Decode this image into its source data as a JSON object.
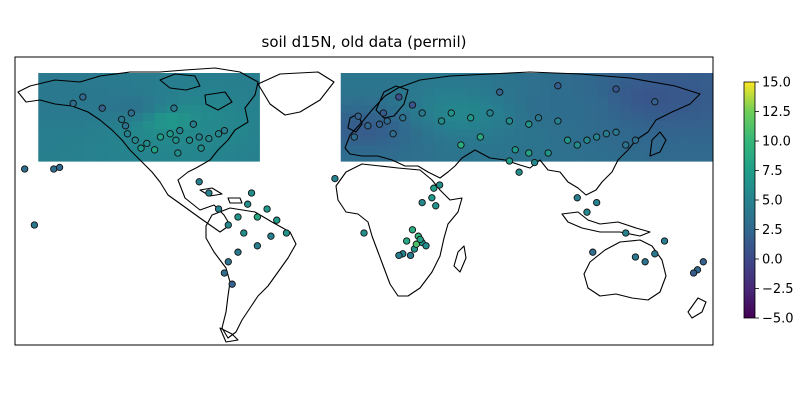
{
  "title": "soil d15N, old data (permil)",
  "colorbar": {
    "colormap": "viridis",
    "vmin": -5.0,
    "vmax": 15.0,
    "tick_labels": [
      "15.0",
      "12.5",
      "10.0",
      "7.5",
      "5.0",
      "2.5",
      "0.0",
      "−2.5",
      "−5.0"
    ],
    "tick_values": [
      15.0,
      12.5,
      10.0,
      7.5,
      5.0,
      2.5,
      0.0,
      -2.5,
      -5.0
    ]
  },
  "map": {
    "projection": "plate-carree",
    "extent": {
      "lon": [
        -180,
        180
      ],
      "lat": [
        -90,
        90
      ]
    },
    "interpolated_band_lat": [
      25,
      80
    ],
    "marker_edge_color": "#111111"
  },
  "chart_data": {
    "type": "scatter",
    "title": "soil d15N, old data (permil)",
    "xlabel": "",
    "ylabel": "",
    "xlim": [
      -180,
      180
    ],
    "ylim": [
      -90,
      90
    ],
    "color_range": [
      -5,
      15
    ],
    "regions": [
      {
        "lon": -120,
        "lat": 58,
        "value": 3.5
      },
      {
        "lon": -100,
        "lat": 50,
        "value": 7.0
      },
      {
        "lon": -80,
        "lat": 44,
        "value": 5.5
      },
      {
        "lon": 0,
        "lat": 45,
        "value": 1.5
      },
      {
        "lon": 50,
        "lat": 55,
        "value": 5.5
      },
      {
        "lon": 100,
        "lat": 60,
        "value": 3.0
      },
      {
        "lon": 150,
        "lat": 65,
        "value": 1.0
      },
      {
        "lon": -150,
        "lat": 65,
        "value": 4.0
      }
    ],
    "points": [
      {
        "lon": -125,
        "lat": 51,
        "v": 4
      },
      {
        "lon": -123,
        "lat": 47,
        "v": 3.5
      },
      {
        "lon": -122,
        "lat": 42,
        "v": 5
      },
      {
        "lon": -118,
        "lat": 38,
        "v": 5.5
      },
      {
        "lon": -112,
        "lat": 36,
        "v": 6
      },
      {
        "lon": -105,
        "lat": 40,
        "v": 7.5
      },
      {
        "lon": -100,
        "lat": 42,
        "v": 7
      },
      {
        "lon": -97,
        "lat": 38,
        "v": 6.5
      },
      {
        "lon": -95,
        "lat": 44,
        "v": 5
      },
      {
        "lon": -90,
        "lat": 38,
        "v": 6
      },
      {
        "lon": -85,
        "lat": 40,
        "v": 5
      },
      {
        "lon": -80,
        "lat": 39,
        "v": 5.5
      },
      {
        "lon": -75,
        "lat": 42,
        "v": 5.5
      },
      {
        "lon": -72,
        "lat": 44,
        "v": 4.5
      },
      {
        "lon": -84,
        "lat": 33,
        "v": 6
      },
      {
        "lon": -108,
        "lat": 32,
        "v": 8
      },
      {
        "lon": -115,
        "lat": 33,
        "v": 7
      },
      {
        "lon": -145,
        "lat": 65,
        "v": 2.5
      },
      {
        "lon": -150,
        "lat": 61,
        "v": 3
      },
      {
        "lon": -135,
        "lat": 58,
        "v": 2
      },
      {
        "lon": -98,
        "lat": 58,
        "v": 4
      },
      {
        "lon": -88,
        "lat": 48,
        "v": 4.5
      },
      {
        "lon": -120,
        "lat": 55,
        "v": 3
      },
      {
        "lon": -96,
        "lat": 30,
        "v": 6
      },
      {
        "lon": -60,
        "lat": -2,
        "v": 6
      },
      {
        "lon": -55,
        "lat": -10,
        "v": 8.5
      },
      {
        "lon": -50,
        "lat": -5,
        "v": 7
      },
      {
        "lon": -65,
        "lat": -10,
        "v": 6.5
      },
      {
        "lon": -70,
        "lat": -15,
        "v": 5.5
      },
      {
        "lon": -75,
        "lat": -5,
        "v": 5
      },
      {
        "lon": -45,
        "lat": -12,
        "v": 7.5
      },
      {
        "lon": -40,
        "lat": -20,
        "v": 6.5
      },
      {
        "lon": -48,
        "lat": -22,
        "v": 5
      },
      {
        "lon": -55,
        "lat": -28,
        "v": 4.5
      },
      {
        "lon": -65,
        "lat": -32,
        "v": 4
      },
      {
        "lon": -70,
        "lat": -38,
        "v": 3.5
      },
      {
        "lon": -72,
        "lat": -45,
        "v": 3
      },
      {
        "lon": -68,
        "lat": -52,
        "v": 2
      },
      {
        "lon": -58,
        "lat": 5,
        "v": 6
      },
      {
        "lon": -80,
        "lat": 5,
        "v": 5
      },
      {
        "lon": -85,
        "lat": 12,
        "v": 4.5
      },
      {
        "lon": -62,
        "lat": -20,
        "v": 6
      },
      {
        "lon": -5,
        "lat": 40,
        "v": 3
      },
      {
        "lon": 2,
        "lat": 47,
        "v": 2.5
      },
      {
        "lon": 8,
        "lat": 48,
        "v": 2
      },
      {
        "lon": 12,
        "lat": 50,
        "v": 2.5
      },
      {
        "lon": 15,
        "lat": 42,
        "v": 3
      },
      {
        "lon": 10,
        "lat": 55,
        "v": 1.5
      },
      {
        "lon": -3,
        "lat": 53,
        "v": 2
      },
      {
        "lon": 20,
        "lat": 52,
        "v": 3.5
      },
      {
        "lon": 25,
        "lat": 60,
        "v": 1
      },
      {
        "lon": 18,
        "lat": 65,
        "v": 0.5
      },
      {
        "lon": 30,
        "lat": 55,
        "v": 4
      },
      {
        "lon": 40,
        "lat": 50,
        "v": 6
      },
      {
        "lon": 45,
        "lat": 55,
        "v": 6.5
      },
      {
        "lon": 55,
        "lat": 52,
        "v": 7
      },
      {
        "lon": 65,
        "lat": 55,
        "v": 5
      },
      {
        "lon": 75,
        "lat": 50,
        "v": 6
      },
      {
        "lon": 85,
        "lat": 48,
        "v": 6.5
      },
      {
        "lon": 90,
        "lat": 52,
        "v": 4
      },
      {
        "lon": 100,
        "lat": 50,
        "v": 5
      },
      {
        "lon": 105,
        "lat": 38,
        "v": 7
      },
      {
        "lon": 110,
        "lat": 35,
        "v": 6
      },
      {
        "lon": 115,
        "lat": 38,
        "v": 5.5
      },
      {
        "lon": 120,
        "lat": 40,
        "v": 5
      },
      {
        "lon": 125,
        "lat": 42,
        "v": 4.5
      },
      {
        "lon": 130,
        "lat": 43,
        "v": 4
      },
      {
        "lon": 135,
        "lat": 35,
        "v": 3.5
      },
      {
        "lon": 140,
        "lat": 38,
        "v": 3
      },
      {
        "lon": 95,
        "lat": 30,
        "v": 6.5
      },
      {
        "lon": 85,
        "lat": 30,
        "v": 8
      },
      {
        "lon": 78,
        "lat": 32,
        "v": 7
      },
      {
        "lon": 60,
        "lat": 40,
        "v": 8.5
      },
      {
        "lon": 50,
        "lat": 35,
        "v": 9
      },
      {
        "lon": 70,
        "lat": 68,
        "v": 2
      },
      {
        "lon": 100,
        "lat": 72,
        "v": 1.5
      },
      {
        "lon": 130,
        "lat": 70,
        "v": 1
      },
      {
        "lon": 150,
        "lat": 62,
        "v": 2
      },
      {
        "lon": 35,
        "lat": 2,
        "v": 7
      },
      {
        "lon": 37,
        "lat": -3,
        "v": 6.5
      },
      {
        "lon": 36,
        "lat": 8,
        "v": 7.5
      },
      {
        "lon": 39,
        "lat": 10,
        "v": 6
      },
      {
        "lon": 30,
        "lat": -1,
        "v": 5.5
      },
      {
        "lon": -15,
        "lat": 14,
        "v": 5
      },
      {
        "lon": 0,
        "lat": -20,
        "v": 6
      },
      {
        "lon": 25,
        "lat": -18,
        "v": 9
      },
      {
        "lon": 28,
        "lat": -22,
        "v": 10
      },
      {
        "lon": 22,
        "lat": -25,
        "v": 8.5
      },
      {
        "lon": 30,
        "lat": -26,
        "v": 7
      },
      {
        "lon": 26,
        "lat": -30,
        "v": 6.5
      },
      {
        "lon": 20,
        "lat": -33,
        "v": 5
      },
      {
        "lon": 18,
        "lat": -34,
        "v": 4.5
      },
      {
        "lon": 24,
        "lat": -34,
        "v": 4
      },
      {
        "lon": 32,
        "lat": -28,
        "v": 6
      },
      {
        "lon": 27,
        "lat": -27,
        "v": 11
      },
      {
        "lon": 29,
        "lat": -24,
        "v": 8
      },
      {
        "lon": -170,
        "lat": -15,
        "v": 4
      },
      {
        "lon": 155,
        "lat": -25,
        "v": 4.5
      },
      {
        "lon": 145,
        "lat": -38,
        "v": 3.5
      },
      {
        "lon": 140,
        "lat": -35,
        "v": 4
      },
      {
        "lon": 150,
        "lat": -33,
        "v": 4
      },
      {
        "lon": 135,
        "lat": -20,
        "v": 5
      },
      {
        "lon": 118,
        "lat": -32,
        "v": 3
      },
      {
        "lon": 175,
        "lat": -38,
        "v": 2
      },
      {
        "lon": 172,
        "lat": -43,
        "v": 2.5
      },
      {
        "lon": 170,
        "lat": -45,
        "v": 1.5
      },
      {
        "lon": 120,
        "lat": -1,
        "v": 5
      },
      {
        "lon": 110,
        "lat": 2,
        "v": 4.5
      },
      {
        "lon": 115,
        "lat": -7,
        "v": 5.5
      },
      {
        "lon": -160,
        "lat": 20,
        "v": 3
      },
      {
        "lon": -157,
        "lat": 21,
        "v": 2.5
      },
      {
        "lon": -175,
        "lat": 20,
        "v": 3
      },
      {
        "lon": 88,
        "lat": 24,
        "v": 5.5
      },
      {
        "lon": 80,
        "lat": 18,
        "v": 6
      },
      {
        "lon": 75,
        "lat": 25,
        "v": 7.5
      }
    ]
  }
}
